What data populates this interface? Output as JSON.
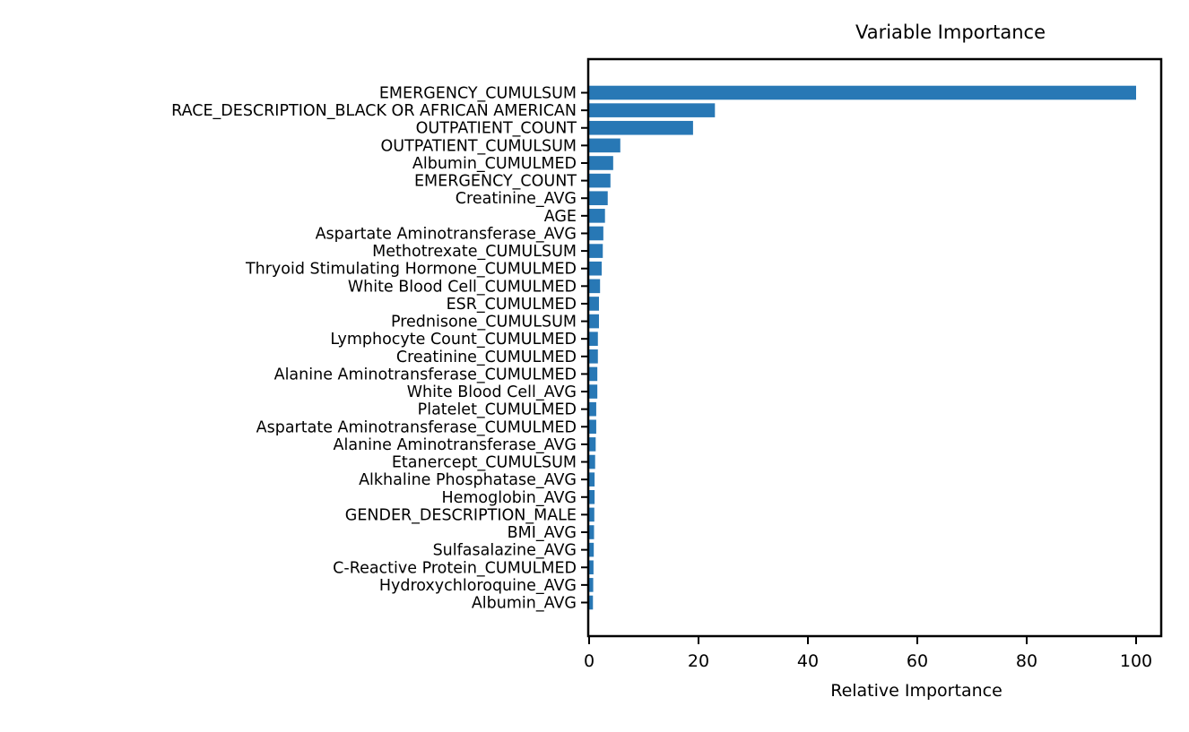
{
  "chart_data": {
    "type": "bar",
    "orientation": "horizontal",
    "title": "Variable Importance",
    "xlabel": "Relative Importance",
    "ylabel": "",
    "xlim": [
      0,
      104.6
    ],
    "xticks": [
      0,
      20,
      40,
      60,
      80,
      100
    ],
    "grid": false,
    "legend": false,
    "bar_color": "#2878b5",
    "axis_color": "#000000",
    "categories": [
      "EMERGENCY_CUMULSUM",
      "RACE_DESCRIPTION_BLACK OR AFRICAN AMERICAN",
      "OUTPATIENT_COUNT",
      "OUTPATIENT_CUMULSUM",
      "Albumin_CUMULMED",
      "EMERGENCY_COUNT",
      "Creatinine_AVG",
      "AGE",
      "Aspartate Aminotransferase_AVG",
      "Methotrexate_CUMULSUM",
      "Thryoid Stimulating Hormone_CUMULMED",
      "White Blood Cell_CUMULMED",
      "ESR_CUMULMED",
      "Prednisone_CUMULSUM",
      "Lymphocyte Count_CUMULMED",
      "Creatinine_CUMULMED",
      "Alanine Aminotransferase_CUMULMED",
      "White Blood Cell_AVG",
      "Platelet_CUMULMED",
      "Aspartate Aminotransferase_CUMULMED",
      "Alanine Aminotransferase_AVG",
      "Etanercept_CUMULSUM",
      "Alkhaline Phosphatase_AVG",
      "Hemoglobin_AVG",
      "GENDER_DESCRIPTION_MALE",
      "BMI_AVG",
      "Sulfasalazine_AVG",
      "C-Reactive Protein_CUMULMED",
      "Hydroxychloroquine_AVG",
      "Albumin_AVG"
    ],
    "values": [
      100,
      23,
      19,
      5.7,
      4.4,
      3.9,
      3.4,
      2.9,
      2.6,
      2.5,
      2.3,
      2.0,
      1.8,
      1.8,
      1.6,
      1.6,
      1.5,
      1.5,
      1.3,
      1.3,
      1.2,
      1.1,
      1.0,
      1.0,
      0.95,
      0.9,
      0.85,
      0.8,
      0.75,
      0.7
    ]
  }
}
